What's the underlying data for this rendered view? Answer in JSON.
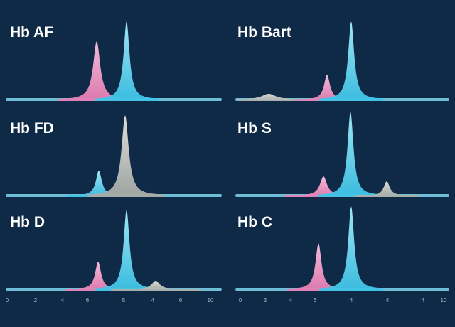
{
  "panels": [
    {
      "title": "Hb AF"
    },
    {
      "title": "Hb Bart"
    },
    {
      "title": "Hb FD"
    },
    {
      "title": "Hb S"
    },
    {
      "title": "Hb D"
    },
    {
      "title": "Hb C"
    }
  ],
  "axis_left": [
    "0",
    "2",
    "4",
    "6",
    "5",
    "4",
    "6",
    "10"
  ],
  "axis_right": [
    "0",
    "2",
    "4",
    "6",
    "4",
    "4",
    "4",
    "10"
  ]
}
